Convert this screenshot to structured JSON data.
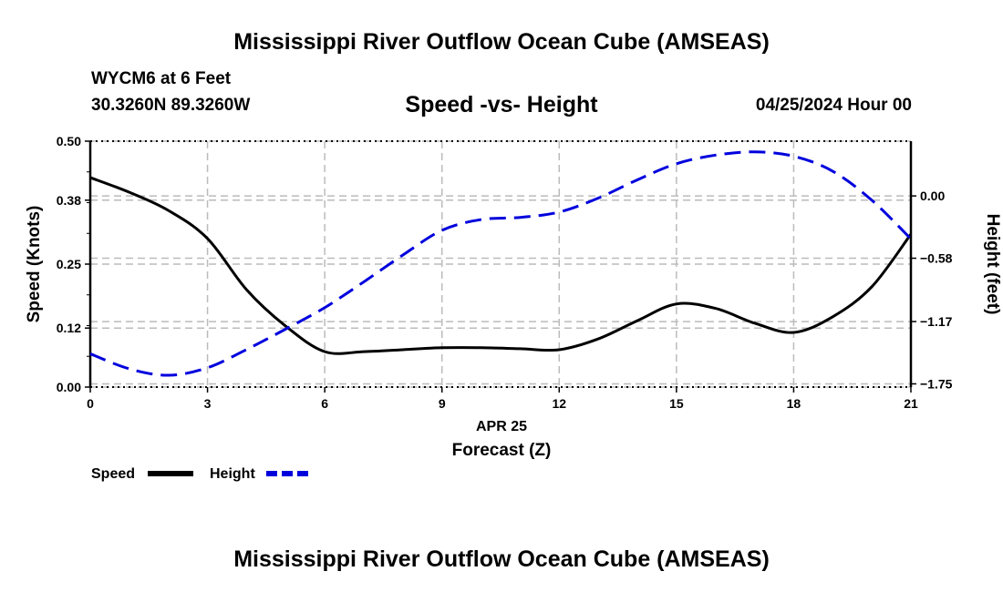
{
  "page": {
    "title": "Mississippi River Outflow Ocean Cube (AMSEAS)",
    "station": "WYCM6 at 6 Feet",
    "coords": "30.3260N  89.3260W",
    "datetime": "04/25/2024 Hour 00",
    "footer_title": "Mississippi River Outflow Ocean Cube (AMSEAS)"
  },
  "chart_data": {
    "type": "line",
    "title": "Speed -vs- Height",
    "xlabel": "Forecast (Z)",
    "xdate_label": "APR 25",
    "ylabel": "Speed (Knots)",
    "y2label": "Height (feet)",
    "xlim": [
      0,
      21
    ],
    "ylim": [
      0,
      0.5
    ],
    "y2lim": [
      -1.78,
      0.51
    ],
    "xticks": [
      "0",
      "3",
      "6",
      "9",
      "12",
      "15",
      "18",
      "21"
    ],
    "yticks": [
      "0.00",
      "0.12",
      "0.25",
      "0.38",
      "0.50"
    ],
    "y2ticks": [
      "-1.75",
      "-1.17",
      "-0.58",
      "0.00"
    ],
    "grid": true,
    "legend_position": "bottom-left",
    "x": [
      0,
      1,
      2,
      3,
      4,
      5,
      6,
      7,
      8,
      9,
      10,
      11,
      12,
      13,
      14,
      15,
      16,
      17,
      18,
      19,
      20,
      21
    ],
    "series": [
      {
        "name": "Speed",
        "axis": "left",
        "color": "#000000",
        "style": "solid",
        "values": [
          0.426,
          0.396,
          0.359,
          0.302,
          0.198,
          0.124,
          0.072,
          0.072,
          0.076,
          0.08,
          0.08,
          0.078,
          0.076,
          0.098,
          0.135,
          0.169,
          0.16,
          0.13,
          0.111,
          0.143,
          0.204,
          0.311
        ]
      },
      {
        "name": "Height",
        "axis": "right",
        "color": "#0000dd",
        "style": "dashed",
        "values": [
          -1.47,
          -1.61,
          -1.67,
          -1.6,
          -1.43,
          -1.24,
          -1.04,
          -0.8,
          -0.55,
          -0.32,
          -0.22,
          -0.2,
          -0.15,
          -0.02,
          0.15,
          0.3,
          0.38,
          0.41,
          0.37,
          0.23,
          -0.04,
          -0.4
        ]
      }
    ]
  }
}
